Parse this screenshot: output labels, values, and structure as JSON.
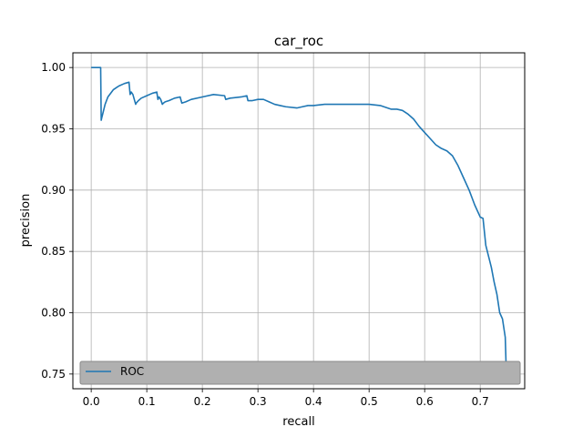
{
  "chart_data": {
    "type": "line",
    "title": "car_roc",
    "xlabel": "recall",
    "ylabel": "precision",
    "xlim": [
      -0.033,
      0.78
    ],
    "ylim": [
      0.738,
      1.012
    ],
    "xticks": [
      0.0,
      0.1,
      0.2,
      0.3,
      0.4,
      0.5,
      0.6,
      0.7
    ],
    "xtick_labels": [
      "0.0",
      "0.1",
      "0.2",
      "0.3",
      "0.4",
      "0.5",
      "0.6",
      "0.7"
    ],
    "yticks": [
      0.75,
      0.8,
      0.85,
      0.9,
      0.95,
      1.0
    ],
    "ytick_labels": [
      "0.75",
      "0.80",
      "0.85",
      "0.90",
      "0.95",
      "1.00"
    ],
    "grid": true,
    "legend": {
      "placement": "lower-left",
      "entries": [
        "ROC"
      ]
    },
    "series": [
      {
        "name": "ROC",
        "color": "#1f77b4",
        "x": [
          0.0,
          0.005,
          0.01,
          0.017,
          0.018,
          0.019,
          0.025,
          0.03,
          0.04,
          0.05,
          0.06,
          0.068,
          0.07,
          0.072,
          0.075,
          0.08,
          0.081,
          0.085,
          0.09,
          0.1,
          0.11,
          0.118,
          0.12,
          0.122,
          0.125,
          0.128,
          0.13,
          0.133,
          0.14,
          0.15,
          0.16,
          0.163,
          0.17,
          0.18,
          0.2,
          0.22,
          0.24,
          0.242,
          0.25,
          0.27,
          0.28,
          0.282,
          0.29,
          0.3,
          0.31,
          0.32,
          0.33,
          0.34,
          0.35,
          0.37,
          0.38,
          0.39,
          0.4,
          0.42,
          0.44,
          0.46,
          0.48,
          0.5,
          0.52,
          0.54,
          0.55,
          0.56,
          0.57,
          0.58,
          0.59,
          0.6,
          0.61,
          0.62,
          0.63,
          0.64,
          0.65,
          0.66,
          0.67,
          0.68,
          0.69,
          0.7,
          0.705,
          0.71,
          0.72,
          0.725,
          0.73,
          0.735,
          0.74,
          0.745,
          0.747
        ],
        "y": [
          1.0,
          1.0,
          1.0,
          1.0,
          0.957,
          0.959,
          0.97,
          0.976,
          0.982,
          0.985,
          0.987,
          0.988,
          0.978,
          0.98,
          0.978,
          0.97,
          0.971,
          0.973,
          0.975,
          0.977,
          0.979,
          0.98,
          0.974,
          0.976,
          0.974,
          0.97,
          0.971,
          0.972,
          0.973,
          0.975,
          0.976,
          0.971,
          0.972,
          0.974,
          0.976,
          0.978,
          0.977,
          0.974,
          0.975,
          0.976,
          0.977,
          0.973,
          0.973,
          0.974,
          0.974,
          0.972,
          0.97,
          0.969,
          0.968,
          0.967,
          0.968,
          0.969,
          0.969,
          0.97,
          0.97,
          0.97,
          0.97,
          0.97,
          0.969,
          0.966,
          0.966,
          0.965,
          0.962,
          0.958,
          0.952,
          0.947,
          0.942,
          0.937,
          0.934,
          0.932,
          0.928,
          0.92,
          0.91,
          0.9,
          0.888,
          0.878,
          0.877,
          0.855,
          0.837,
          0.825,
          0.815,
          0.8,
          0.795,
          0.78,
          0.75
        ]
      }
    ]
  }
}
